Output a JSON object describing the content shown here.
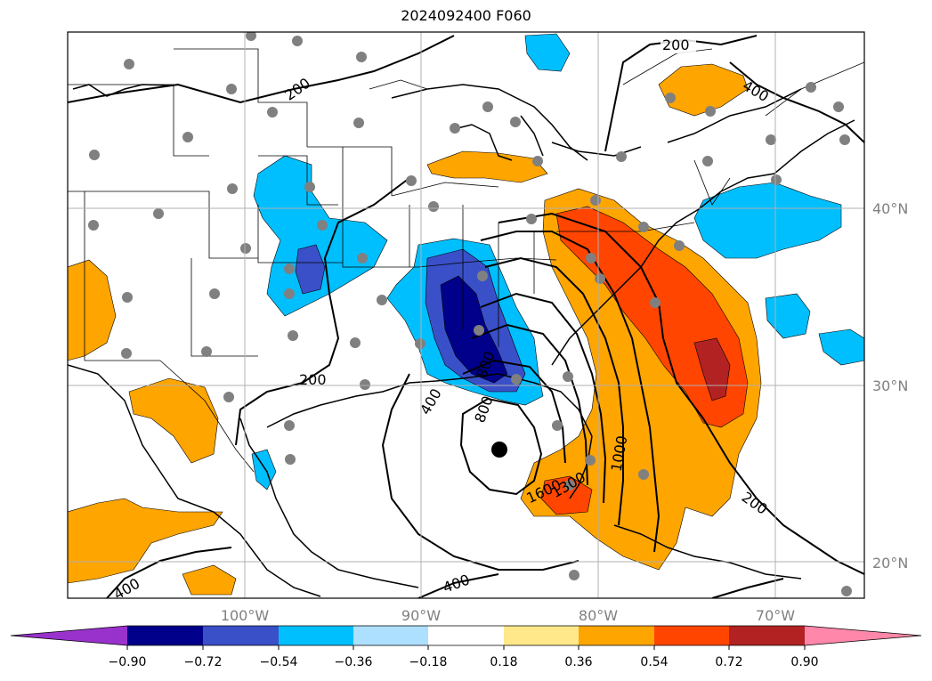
{
  "title": "2024092400 F060",
  "lat_labels": [
    "40°N",
    "30°N",
    "20°N"
  ],
  "lon_labels": [
    "100°W",
    "90°W",
    "80°W",
    "70°W"
  ],
  "contour_labels": [
    "200",
    "200",
    "200",
    "200",
    "400",
    "400",
    "400",
    "400",
    "800",
    "800",
    "1000",
    "1300",
    "1600"
  ],
  "colorbar": {
    "ticks": [
      "−0.90",
      "−0.72",
      "−0.54",
      "−0.36",
      "−0.18",
      "0.18",
      "0.36",
      "0.54",
      "0.72",
      "0.90"
    ],
    "colors": [
      "#9932CC",
      "#00008B",
      "#3A50C8",
      "#00BFFF",
      "#ADDFFF",
      "#FFFFFF",
      "#FFE88A",
      "#FFA500",
      "#FF4500",
      "#B22222",
      "#FF88AA"
    ]
  }
}
